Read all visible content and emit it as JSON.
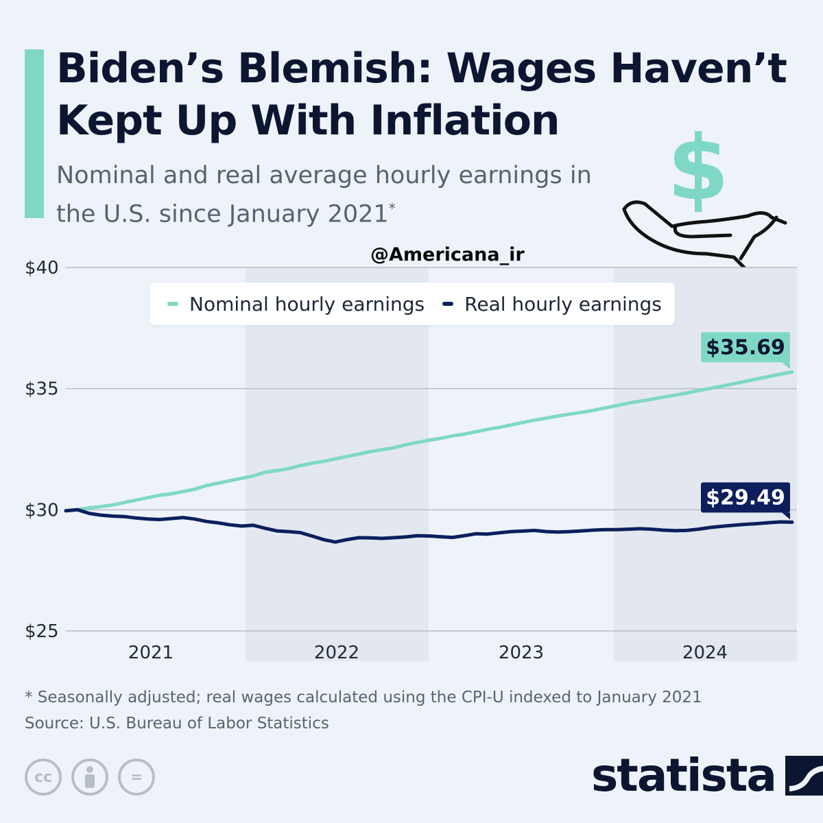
{
  "header": {
    "title": "Biden’s Blemish: Wages Haven’t Kept Up With Inflation",
    "subtitle": "Nominal and real average hourly earnings in the U.S. since January 2021",
    "subtitle_mark": "*"
  },
  "watermark": "@Americana_ir",
  "chart_data": {
    "type": "line",
    "y_ticks": [
      "$40",
      "$35",
      "$30",
      "$25"
    ],
    "ylim": [
      25,
      40
    ],
    "x_ticks": [
      "2021",
      "2022",
      "2023",
      "2024"
    ],
    "grid": true,
    "legend_position": "top-center",
    "series": [
      {
        "name": "Nominal hourly earnings",
        "color": "#7fd8c6",
        "end_label": "$35.69",
        "values": [
          29.96,
          30.01,
          30.08,
          30.13,
          30.2,
          30.3,
          30.4,
          30.5,
          30.6,
          30.66,
          30.75,
          30.85,
          31.0,
          31.1,
          31.2,
          31.3,
          31.4,
          31.55,
          31.62,
          31.7,
          31.82,
          31.92,
          32.0,
          32.1,
          32.2,
          32.3,
          32.4,
          32.48,
          32.56,
          32.68,
          32.78,
          32.87,
          32.95,
          33.05,
          33.12,
          33.22,
          33.32,
          33.4,
          33.5,
          33.6,
          33.7,
          33.78,
          33.87,
          33.95,
          34.02,
          34.1,
          34.2,
          34.3,
          34.4,
          34.48,
          34.56,
          34.65,
          34.73,
          34.82,
          34.92,
          35.01,
          35.1,
          35.2,
          35.3,
          35.4,
          35.5,
          35.6,
          35.69
        ]
      },
      {
        "name": "Real hourly earnings",
        "color": "#0c1f5c",
        "end_label": "$29.49",
        "values": [
          29.96,
          30.0,
          29.85,
          29.78,
          29.74,
          29.72,
          29.66,
          29.62,
          29.6,
          29.64,
          29.68,
          29.62,
          29.52,
          29.46,
          29.38,
          29.33,
          29.36,
          29.24,
          29.13,
          29.1,
          29.06,
          28.92,
          28.77,
          28.67,
          28.77,
          28.85,
          28.84,
          28.82,
          28.85,
          28.88,
          28.93,
          28.92,
          28.89,
          28.86,
          28.93,
          29.01,
          29.0,
          29.05,
          29.1,
          29.12,
          29.15,
          29.1,
          29.08,
          29.1,
          29.13,
          29.16,
          29.18,
          29.18,
          29.2,
          29.22,
          29.2,
          29.16,
          29.14,
          29.15,
          29.2,
          29.27,
          29.32,
          29.36,
          29.4,
          29.43,
          29.47,
          29.5,
          29.49
        ]
      }
    ]
  },
  "footer": {
    "note": "* Seasonally adjusted; real wages calculated using the CPI-U indexed to January 2021",
    "source": "Source: U.S. Bureau of Labor Statistics",
    "brand": "statista"
  },
  "icons": [
    "dollar-in-hand-icon",
    "cc-icon",
    "attribution-icon",
    "no-derivatives-icon",
    "statista-logo-icon"
  ],
  "cc_labels": [
    "cc",
    "",
    "="
  ]
}
